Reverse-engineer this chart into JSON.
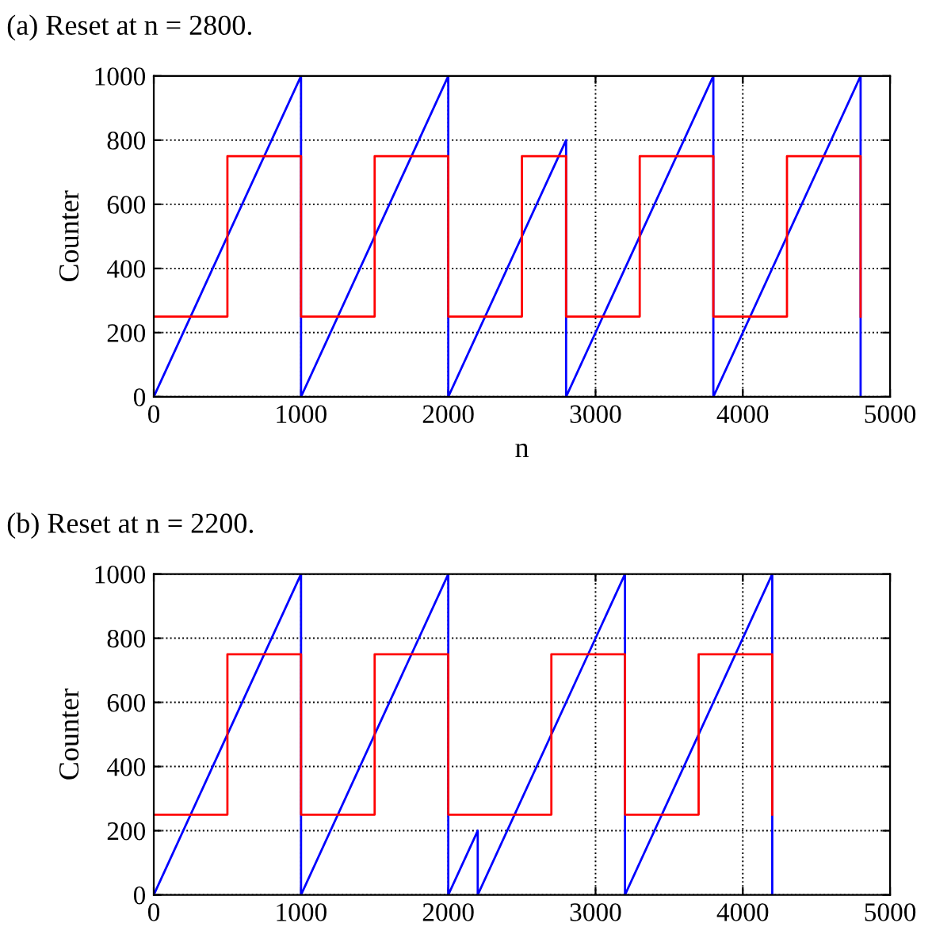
{
  "chart_data": [
    {
      "type": "line",
      "title": "(a) Reset at n = 2800.",
      "xlabel": "n",
      "ylabel": "Counter",
      "xlim": [
        0,
        5000
      ],
      "ylim": [
        0,
        1000
      ],
      "xticks": [
        0,
        1000,
        2000,
        3000,
        4000,
        5000
      ],
      "yticks": [
        0,
        200,
        400,
        600,
        800,
        1000
      ],
      "grid": true,
      "series": [
        {
          "color": "#0000ff",
          "x": [
            0,
            1000,
            1000,
            2000,
            2000,
            2800,
            2800,
            3800,
            3800,
            4800,
            4800
          ],
          "values": [
            0,
            1000,
            0,
            1000,
            0,
            800,
            0,
            1000,
            0,
            1000,
            0
          ]
        },
        {
          "color": "#ff0000",
          "x": [
            0,
            500,
            500,
            1000,
            1000,
            1500,
            1500,
            2000,
            2000,
            2500,
            2500,
            2800,
            2800,
            3300,
            3300,
            3800,
            3800,
            4300,
            4300,
            4800,
            4800
          ],
          "values": [
            250,
            250,
            750,
            750,
            250,
            250,
            750,
            750,
            250,
            250,
            750,
            750,
            250,
            250,
            750,
            750,
            250,
            250,
            750,
            750,
            250
          ]
        }
      ]
    },
    {
      "type": "line",
      "title": "(b) Reset at n = 2200.",
      "ylabel": "Counter",
      "xlim": [
        0,
        5000
      ],
      "ylim": [
        0,
        1000
      ],
      "xticks": [
        0,
        1000,
        2000,
        3000,
        4000,
        5000
      ],
      "yticks": [
        0,
        200,
        400,
        600,
        800,
        1000
      ],
      "grid": true,
      "series": [
        {
          "color": "#0000ff",
          "x": [
            0,
            1000,
            1000,
            2000,
            2000,
            2200,
            2200,
            3200,
            3200,
            4200,
            4200
          ],
          "values": [
            0,
            1000,
            0,
            1000,
            0,
            200,
            0,
            1000,
            0,
            1000,
            0
          ]
        },
        {
          "color": "#ff0000",
          "x": [
            0,
            500,
            500,
            1000,
            1000,
            1500,
            1500,
            2000,
            2000,
            2700,
            2700,
            3200,
            3200,
            3700,
            3700,
            4200,
            4200
          ],
          "values": [
            250,
            250,
            750,
            750,
            250,
            250,
            750,
            750,
            250,
            250,
            750,
            750,
            250,
            250,
            750,
            750,
            250
          ]
        }
      ]
    }
  ]
}
